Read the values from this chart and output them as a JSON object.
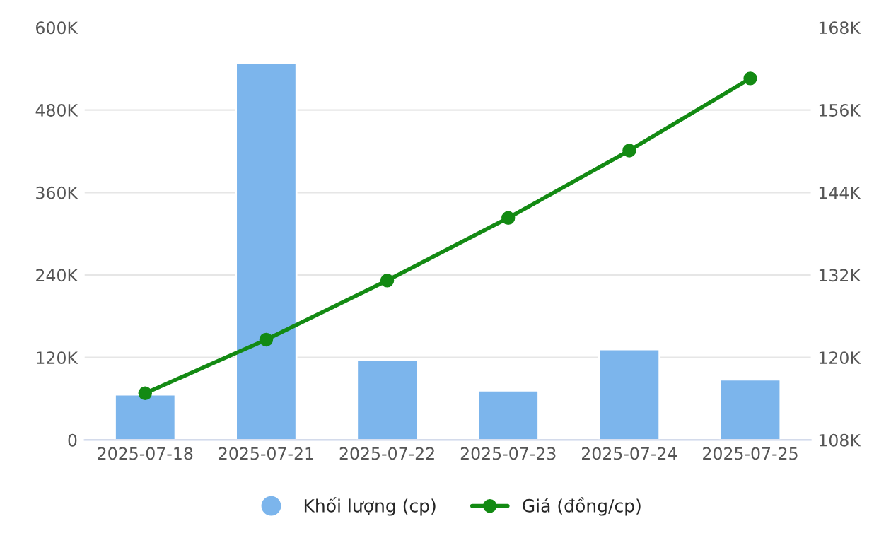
{
  "chart_data": {
    "type": "bar",
    "categories": [
      "2025-07-18",
      "2025-07-21",
      "2025-07-22",
      "2025-07-23",
      "2025-07-24",
      "2025-07-25"
    ],
    "series": [
      {
        "name": "Khối lượng (cp)",
        "color": "#7cb5ec",
        "values": [
          66000,
          549000,
          117000,
          72000,
          132000,
          88000
        ]
      },
      {
        "name": "Giá (đồng/cp)",
        "type": "line",
        "axis": "y2",
        "color": "#138a13",
        "marker": "circle",
        "values": [
          114800,
          122600,
          131200,
          140300,
          150100,
          160600
        ]
      }
    ],
    "ylim": [
      0,
      600000
    ],
    "yticks": [
      {
        "value": 0,
        "label": "0"
      },
      {
        "value": 120000,
        "label": "120K"
      },
      {
        "value": 240000,
        "label": "240K"
      },
      {
        "value": 360000,
        "label": "360K"
      },
      {
        "value": 480000,
        "label": "480K"
      },
      {
        "value": 600000,
        "label": "600K"
      }
    ],
    "y2lim": [
      108000,
      168000
    ],
    "y2ticks": [
      {
        "value": 108000,
        "label": "108K"
      },
      {
        "value": 120000,
        "label": "120K"
      },
      {
        "value": 132000,
        "label": "132K"
      },
      {
        "value": 144000,
        "label": "144K"
      },
      {
        "value": 156000,
        "label": "156K"
      },
      {
        "value": 168000,
        "label": "168K"
      }
    ],
    "grid": "y",
    "legend": "bottom"
  }
}
